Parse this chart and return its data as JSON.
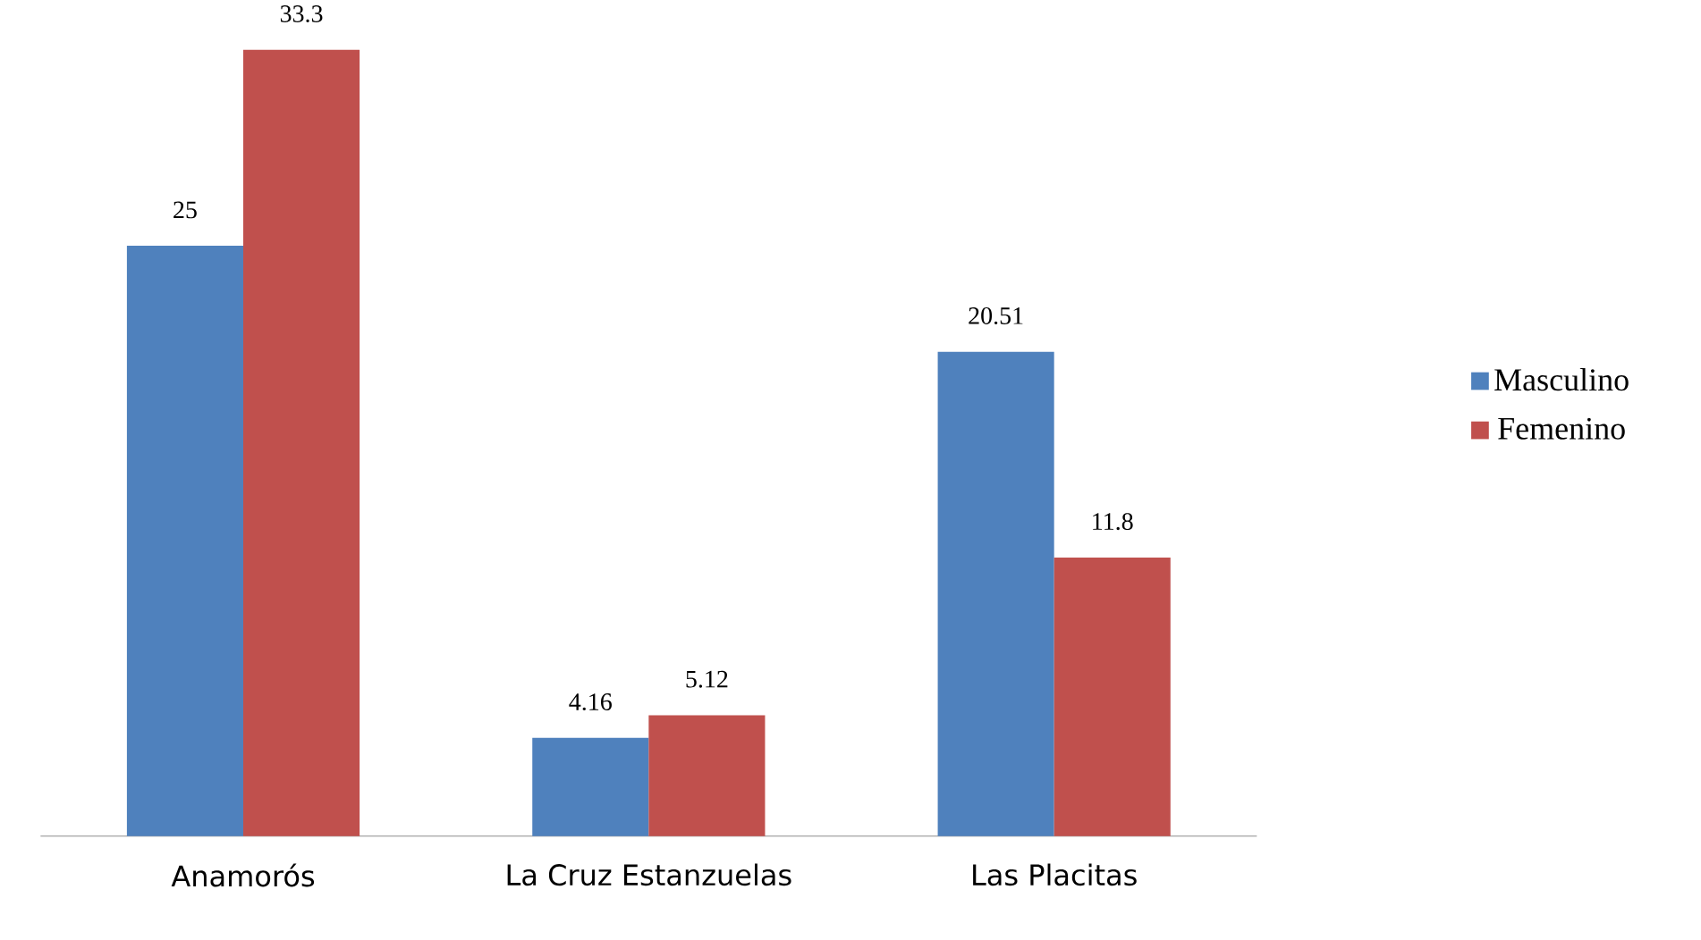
{
  "chart_data": {
    "type": "bar",
    "categories": [
      "Anamorós",
      "La Cruz Estanzuelas",
      "Las Placitas"
    ],
    "series": [
      {
        "name": "Masculino",
        "color": "#4f81bd",
        "values": [
          25,
          4.16,
          20.51
        ]
      },
      {
        "name": "Femenino",
        "color": "#c0504d",
        "values": [
          33.3,
          5.12,
          11.8
        ]
      }
    ],
    "data_labels": true,
    "legend": "right"
  }
}
